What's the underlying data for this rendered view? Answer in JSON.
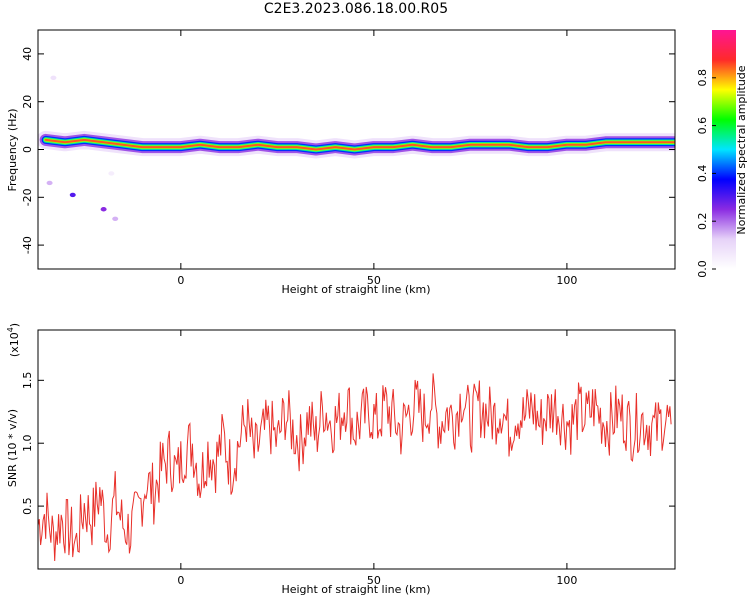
{
  "figure": {
    "title": "C2E3.2023.086.18.00.R05"
  },
  "chart_data": [
    {
      "type": "heatmap",
      "xlabel": "Height of straight line (km)",
      "ylabel": "Frequency (Hz)",
      "xlim": [
        -37,
        128
      ],
      "ylim": [
        -50,
        50
      ],
      "xticks": [
        0,
        50,
        100
      ],
      "yticks": [
        -40,
        -20,
        0,
        20,
        40
      ],
      "colorbar": {
        "label": "Normalized spectral amplitude",
        "range": [
          0,
          1
        ],
        "ticks": [
          "0.0",
          "0.2",
          "0.4",
          "0.6",
          "0.8"
        ],
        "colors": [
          "#ffffff",
          "#e6d2f8",
          "#8a2be2",
          "#0000ff",
          "#00e5ff",
          "#00ff00",
          "#ffff00",
          "#ff2a2a",
          "#ff1493"
        ]
      },
      "ridge_frequency": [
        {
          "x": -35,
          "y": 4
        },
        {
          "x": -30,
          "y": 3
        },
        {
          "x": -25,
          "y": 4
        },
        {
          "x": -20,
          "y": 3
        },
        {
          "x": -15,
          "y": 2
        },
        {
          "x": -10,
          "y": 1
        },
        {
          "x": -5,
          "y": 1
        },
        {
          "x": 0,
          "y": 1
        },
        {
          "x": 5,
          "y": 2
        },
        {
          "x": 10,
          "y": 1
        },
        {
          "x": 15,
          "y": 1
        },
        {
          "x": 20,
          "y": 2
        },
        {
          "x": 25,
          "y": 1
        },
        {
          "x": 30,
          "y": 1
        },
        {
          "x": 35,
          "y": 0
        },
        {
          "x": 40,
          "y": 1
        },
        {
          "x": 45,
          "y": 0
        },
        {
          "x": 50,
          "y": 1
        },
        {
          "x": 55,
          "y": 1
        },
        {
          "x": 60,
          "y": 2
        },
        {
          "x": 65,
          "y": 1
        },
        {
          "x": 70,
          "y": 1
        },
        {
          "x": 75,
          "y": 2
        },
        {
          "x": 80,
          "y": 2
        },
        {
          "x": 85,
          "y": 2
        },
        {
          "x": 90,
          "y": 1
        },
        {
          "x": 95,
          "y": 1
        },
        {
          "x": 100,
          "y": 2
        },
        {
          "x": 105,
          "y": 2
        },
        {
          "x": 110,
          "y": 3
        },
        {
          "x": 115,
          "y": 3
        },
        {
          "x": 120,
          "y": 3
        },
        {
          "x": 125,
          "y": 3
        },
        {
          "x": 128,
          "y": 3
        }
      ],
      "scattered_points": [
        {
          "x": -33,
          "y": 30,
          "v": 0.08
        },
        {
          "x": -34,
          "y": -14,
          "v": 0.15
        },
        {
          "x": -28,
          "y": -19,
          "v": 0.3
        },
        {
          "x": -20,
          "y": -25,
          "v": 0.25
        },
        {
          "x": -17,
          "y": -29,
          "v": 0.15
        },
        {
          "x": -18,
          "y": -10,
          "v": 0.05
        }
      ]
    },
    {
      "type": "line",
      "xlabel": "Height of straight line (km)",
      "ylabel": "SNR (10 * v/v)",
      "y_multiplier_label": "(x10",
      "y_multiplier_exponent": "4",
      "y_multiplier_close": ")",
      "xlim": [
        -37,
        128
      ],
      "ylim": [
        0,
        1.9
      ],
      "xticks": [
        0,
        50,
        100
      ],
      "yticks": [
        "0.5",
        "1.0",
        "1.5"
      ],
      "color": "#e8302a",
      "series": [
        {
          "x": [
            -37,
            -35,
            -33,
            -31,
            -29,
            -27,
            -25,
            -23,
            -21,
            -19,
            -17,
            -15,
            -13,
            -11,
            -9,
            -7,
            -5,
            -3,
            -1,
            1,
            3,
            5,
            7,
            9,
            11,
            13,
            15,
            17,
            19,
            21,
            23,
            25,
            27,
            29,
            31,
            33,
            35,
            37,
            39,
            41,
            43,
            45,
            47,
            49,
            51,
            53,
            55,
            57,
            59,
            61,
            63,
            65,
            67,
            69,
            71,
            73,
            75,
            77,
            79,
            81,
            83,
            85,
            87,
            89,
            91,
            93,
            95,
            97,
            99,
            101,
            103,
            105,
            107,
            109,
            111,
            113,
            115,
            117,
            119,
            121,
            123,
            125,
            127
          ],
          "y": [
            0.35,
            0.45,
            0.25,
            0.4,
            0.3,
            0.2,
            0.5,
            0.4,
            0.6,
            0.3,
            0.55,
            0.35,
            0.3,
            0.45,
            0.7,
            0.6,
            0.8,
            0.9,
            0.75,
            0.95,
            1.0,
            0.7,
            0.95,
            0.85,
            1.05,
            0.8,
            1.0,
            1.2,
            0.9,
            1.05,
            1.15,
            1.0,
            1.25,
            1.1,
            1.0,
            1.2,
            1.05,
            1.3,
            1.15,
            1.2,
            1.35,
            1.1,
            1.2,
            1.25,
            1.15,
            1.3,
            1.2,
            1.1,
            1.25,
            1.3,
            1.2,
            1.35,
            1.15,
            1.25,
            1.2,
            1.4,
            1.15,
            1.3,
            1.25,
            1.2,
            1.3,
            1.1,
            1.25,
            1.2,
            1.3,
            1.15,
            1.25,
            1.3,
            1.2,
            1.15,
            1.25,
            1.2,
            1.3,
            1.2,
            1.15,
            1.25,
            1.2,
            1.1,
            1.2,
            1.15,
            1.1,
            1.2,
            1.15
          ]
        }
      ]
    }
  ]
}
